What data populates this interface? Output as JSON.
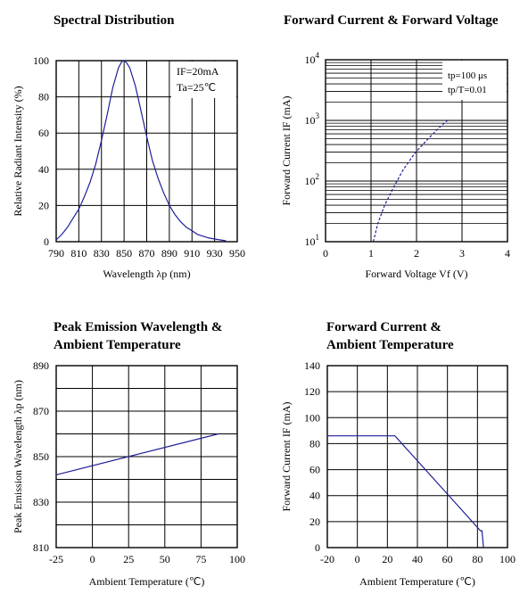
{
  "chart_data": [
    {
      "id": "spectral",
      "type": "line",
      "title": "Spectral Distribution",
      "xlabel": "Wavelength λp (nm)",
      "ylabel": "Relative Radiant Intensity (%)",
      "xlim": [
        790,
        950
      ],
      "ylim": [
        0,
        100
      ],
      "xticks": [
        "790",
        "810",
        "830",
        "850",
        "870",
        "890",
        "910",
        "930",
        "950"
      ],
      "yticks": [
        "0",
        "20",
        "40",
        "60",
        "80",
        "100"
      ],
      "grid": true,
      "annotations": [
        "IF=20mA",
        "Ta=25℃"
      ],
      "series": [
        {
          "x": [
            790,
            795,
            800,
            805,
            810,
            815,
            820,
            825,
            830,
            835,
            840,
            845,
            848,
            850,
            852,
            855,
            860,
            865,
            870,
            875,
            880,
            885,
            890,
            895,
            900,
            905,
            910,
            915,
            920,
            925,
            930,
            935,
            940
          ],
          "y": [
            1,
            4,
            8,
            13,
            18,
            25,
            33,
            43,
            56,
            70,
            85,
            96,
            99.5,
            100,
            99,
            96,
            86,
            72,
            58,
            45,
            35,
            27,
            20,
            15,
            11,
            8,
            6,
            4,
            3,
            2,
            1.5,
            1,
            0.5
          ]
        }
      ]
    },
    {
      "id": "iv",
      "type": "line",
      "title": "Forward Current & Forward Voltage",
      "xlabel": "Forward Voltage Vf (V)",
      "ylabel": "Forward Current IF (mA)",
      "xlim": [
        0,
        4
      ],
      "ylim": [
        10,
        10000
      ],
      "yscale": "log",
      "xticks": [
        "0",
        "1",
        "2",
        "3",
        "4"
      ],
      "ytick_base": "10",
      "ytick_exps": [
        "1",
        "2",
        "3",
        "4"
      ],
      "grid": true,
      "annotations": [
        "tp=100 μs",
        "tp/T=0.01"
      ],
      "series": [
        {
          "x": [
            1.05,
            1.15,
            1.3,
            1.5,
            1.7,
            1.95,
            2.2,
            2.45,
            2.68
          ],
          "y": [
            10,
            20,
            40,
            80,
            150,
            280,
            450,
            700,
            1000
          ]
        }
      ]
    },
    {
      "id": "peak",
      "type": "line",
      "title": "Peak Emission Wavelength & Ambient Temperature",
      "xlabel": "Ambient Temperature (℃)",
      "ylabel": "Peak Emission Wavelength λp (nm)",
      "xlim": [
        -25,
        100
      ],
      "ylim": [
        810,
        890
      ],
      "xticks": [
        "-25",
        "0",
        "25",
        "50",
        "75",
        "100"
      ],
      "yticks": [
        "810",
        "830",
        "850",
        "870",
        "890"
      ],
      "grid": true,
      "series": [
        {
          "x": [
            -25,
            87
          ],
          "y": [
            842,
            860
          ]
        }
      ]
    },
    {
      "id": "derating",
      "type": "line",
      "title": "Forward Current & Ambient Temperature",
      "xlabel": "Ambient Temperature (℃)",
      "ylabel": "Forward Current IF (mA)",
      "xlim": [
        -20,
        100
      ],
      "ylim": [
        0,
        140
      ],
      "xticks": [
        "-20",
        "0",
        "20",
        "40",
        "60",
        "80",
        "100"
      ],
      "yticks": [
        "0",
        "20",
        "40",
        "60",
        "80",
        "100",
        "120",
        "140"
      ],
      "grid": true,
      "series": [
        {
          "x": [
            -20,
            25,
            82,
            83,
            84
          ],
          "y": [
            86,
            86,
            13,
            13,
            0
          ]
        }
      ]
    }
  ]
}
